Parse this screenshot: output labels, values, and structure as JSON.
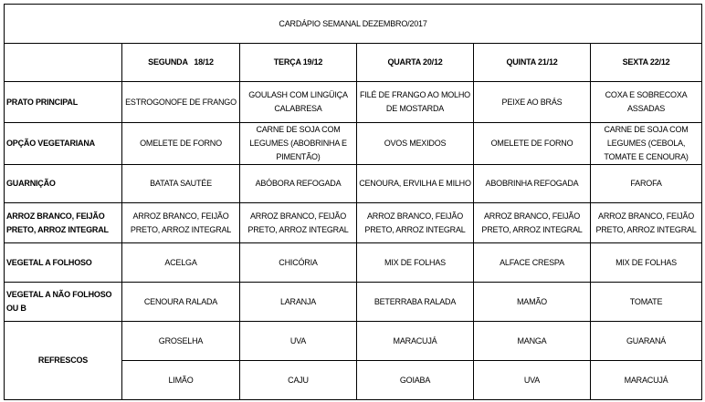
{
  "title": "CARDÁPIO SEMANAL DEZEMBRO/2017",
  "days": [
    "SEGUNDA   18/12",
    "TERÇA 19/12",
    "QUARTA 20/12",
    "QUINTA 21/12",
    "SEXTA 22/12"
  ],
  "rows": [
    {
      "label": "PRATO PRINCIPAL",
      "cells": [
        "ESTROGONOFE DE FRANGO",
        "GOULASH COM LINGÜIÇA CALABRESA",
        "FILÉ DE FRANGO AO MOLHO DE MOSTARDA",
        "PEIXE AO BRÁS",
        "COXA E SOBRECOXA ASSADAS"
      ]
    },
    {
      "label": "OPÇÃO VEGETARIANA",
      "cells": [
        "OMELETE DE FORNO",
        "CARNE DE SOJA COM LEGUMES (ABOBRINHA E PIMENTÃO)",
        "OVOS MEXIDOS",
        "OMELETE DE FORNO",
        "CARNE DE SOJA COM LEGUMES (CEBOLA, TOMATE E CENOURA)"
      ]
    },
    {
      "label": "GUARNIÇÃO",
      "cells": [
        "BATATA SAUTÉE",
        "ABÓBORA REFOGADA",
        "CENOURA, ERVILHA E MILHO",
        "ABOBRINHA REFOGADA",
        "FAROFA"
      ]
    },
    {
      "label": "ARROZ BRANCO, FEIJÃO PRETO, ARROZ INTEGRAL",
      "cells": [
        "ARROZ BRANCO, FEIJÃO PRETO, ARROZ INTEGRAL",
        "ARROZ BRANCO, FEIJÃO PRETO, ARROZ INTEGRAL",
        "ARROZ BRANCO, FEIJÃO PRETO, ARROZ INTEGRAL",
        "ARROZ BRANCO, FEIJÃO PRETO, ARROZ INTEGRAL",
        "ARROZ BRANCO, FEIJÃO PRETO, ARROZ INTEGRAL"
      ]
    },
    {
      "label": "VEGETAL A FOLHOSO",
      "cells": [
        "ACELGA",
        "CHICÓRIA",
        "MIX DE FOLHAS",
        "ALFACE CRESPA",
        "MIX DE FOLHAS"
      ]
    },
    {
      "label": "VEGETAL A NÃO FOLHOSO OU B",
      "cells": [
        "CENOURA RALADA",
        "LARANJA",
        "BETERRABA RALADA",
        "MAMÃO",
        "TOMATE"
      ]
    }
  ],
  "refrescos": {
    "label": "REFRESCOS",
    "row1": [
      "GROSELHA",
      "UVA",
      "MARACUJÁ",
      "MANGA",
      "GUARANÁ"
    ],
    "row2": [
      "LIMÃO",
      "CAJU",
      "GOIABA",
      "UVA",
      "MARACUJÁ"
    ]
  }
}
